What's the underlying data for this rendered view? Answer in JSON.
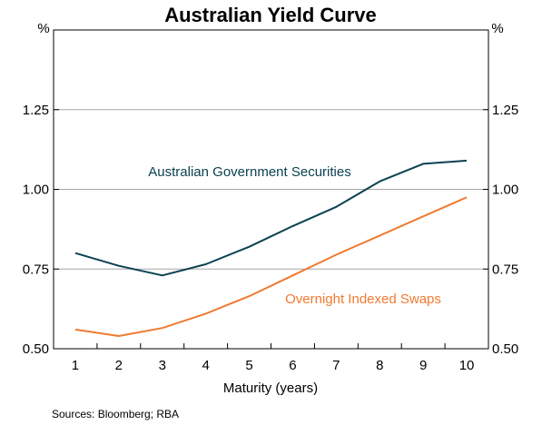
{
  "chart_data": {
    "type": "line",
    "title": "Australian Yield Curve",
    "xlabel": "Maturity (years)",
    "ylabel_left": "%",
    "ylabel_right": "%",
    "x": [
      1,
      2,
      3,
      4,
      5,
      6,
      7,
      8,
      9,
      10
    ],
    "xlim": [
      0.5,
      10.5
    ],
    "ylim": [
      0.5,
      1.5
    ],
    "yticks": [
      0.5,
      0.75,
      1.0,
      1.25
    ],
    "ytick_labels": [
      "0.50",
      "0.75",
      "1.00",
      "1.25"
    ],
    "xtick_labels": [
      "1",
      "2",
      "3",
      "4",
      "5",
      "6",
      "7",
      "8",
      "9",
      "10"
    ],
    "grid": "horizontal",
    "series": [
      {
        "name": "Australian Government Securities",
        "color": "#0b4152",
        "values": [
          0.8,
          0.76,
          0.73,
          0.765,
          0.82,
          0.885,
          0.945,
          1.025,
          1.08,
          1.09
        ]
      },
      {
        "name": "Overnight Indexed Swaps",
        "color": "#f07a30",
        "values": [
          0.56,
          0.54,
          0.565,
          0.61,
          0.665,
          0.73,
          0.795,
          0.855,
          0.915,
          0.975
        ]
      }
    ]
  },
  "source": "Sources:  Bloomberg; RBA"
}
